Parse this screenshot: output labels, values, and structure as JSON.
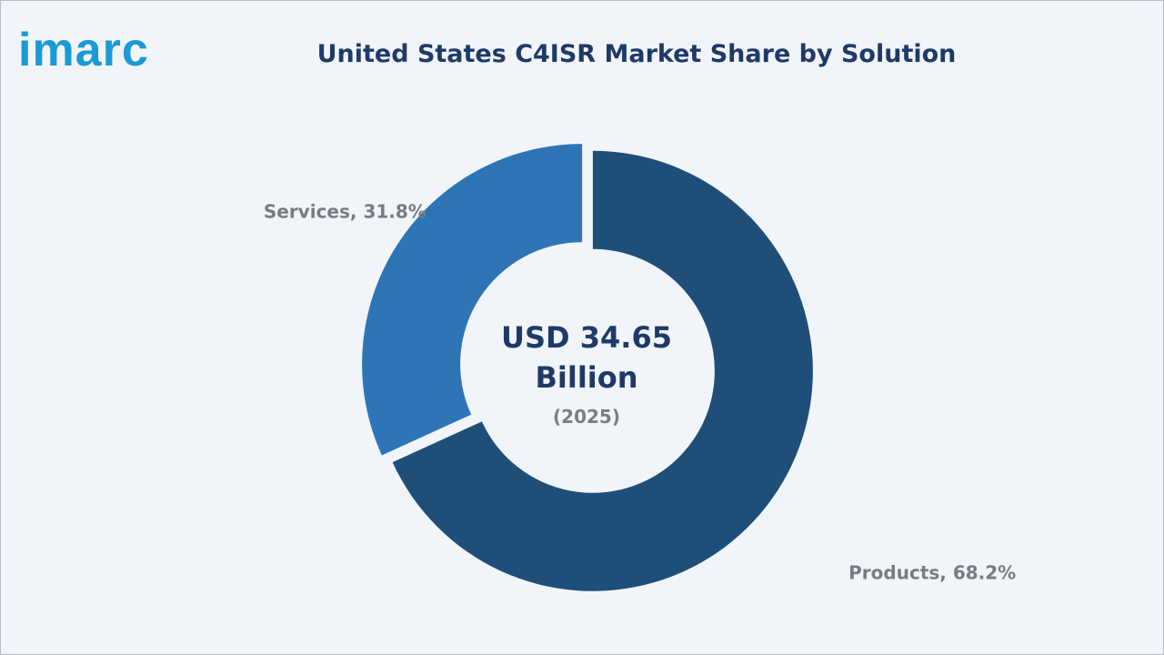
{
  "brand": {
    "logo_text": "imarc",
    "logo_color": "#1a9ad6"
  },
  "chart_data": {
    "type": "pie",
    "subtype": "donut",
    "title": "United States C4ISR Market Share by Solution",
    "slices": [
      {
        "label": "Products",
        "value": 68.2,
        "display": "Products, 68.2%",
        "color": "#1f4e79"
      },
      {
        "label": "Services",
        "value": 31.8,
        "display": "Services, 31.8%",
        "color": "#2e75b6"
      }
    ],
    "center": {
      "line1": "USD 34.65",
      "line2": "Billion",
      "line3": "(2025)"
    },
    "legend": "none"
  }
}
